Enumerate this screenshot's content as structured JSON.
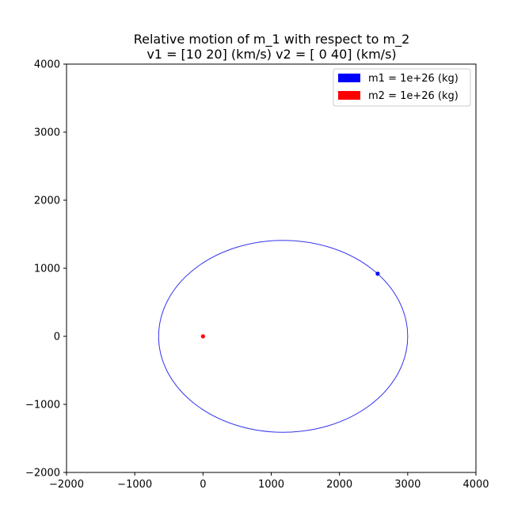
{
  "chart_data": {
    "type": "scatter",
    "title": "Relative motion of m_1 with respect to m_2",
    "subtitle": "v1 = [10 20] (km/s) v2 = [ 0 40] (km/s)",
    "xlim": [
      -2000,
      4000
    ],
    "ylim": [
      -2000,
      4000
    ],
    "xticks": [
      -2000,
      -1000,
      0,
      1000,
      2000,
      3000,
      4000
    ],
    "yticks": [
      -2000,
      -1000,
      0,
      1000,
      2000,
      3000,
      4000
    ],
    "xtick_labels": [
      "−2000",
      "−1000",
      "0",
      "1000",
      "2000",
      "3000",
      "4000"
    ],
    "ytick_labels": [
      "−2000",
      "−1000",
      "0",
      "1000",
      "2000",
      "3000",
      "4000"
    ],
    "grid": false,
    "legend_position": "top-right",
    "legend": [
      {
        "label": "m1 = 1e+26 (kg)",
        "color": "#0000ff"
      },
      {
        "label": "m2 = 1e+26 (kg)",
        "color": "#ff0000"
      }
    ],
    "orbit": {
      "center_x": 1175,
      "center_y": 0,
      "semi_axis_x": 1825,
      "semi_axis_y": 1410,
      "color": "#3333ee"
    },
    "points": [
      {
        "name": "m1",
        "x": 2560,
        "y": 920,
        "color": "#0000ff"
      },
      {
        "name": "m2",
        "x": 0,
        "y": 0,
        "color": "#ff0000"
      }
    ]
  }
}
